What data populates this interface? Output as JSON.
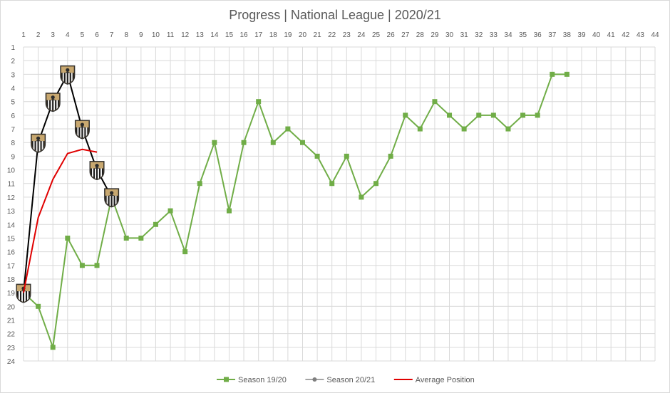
{
  "chart_data": {
    "type": "line",
    "title": "Progress | National League | 2020/21",
    "xlabel": "",
    "ylabel": "",
    "x_axis_position": "top",
    "y_axis_reversed": true,
    "xlim": [
      1,
      44
    ],
    "ylim": [
      1,
      24
    ],
    "x_ticks": [
      1,
      2,
      3,
      4,
      5,
      6,
      7,
      8,
      9,
      10,
      11,
      12,
      13,
      14,
      15,
      16,
      17,
      18,
      19,
      20,
      21,
      22,
      23,
      24,
      25,
      26,
      27,
      28,
      29,
      30,
      31,
      32,
      33,
      34,
      35,
      36,
      37,
      38,
      39,
      40,
      41,
      42,
      43,
      44
    ],
    "y_ticks": [
      1,
      2,
      3,
      4,
      5,
      6,
      7,
      8,
      9,
      10,
      11,
      12,
      13,
      14,
      15,
      16,
      17,
      18,
      19,
      20,
      21,
      22,
      23,
      24
    ],
    "grid": true,
    "legend_position": "bottom",
    "series": [
      {
        "name": "Season 19/20",
        "color": "#70ad47",
        "marker": "square",
        "x": [
          1,
          2,
          3,
          4,
          5,
          6,
          7,
          8,
          9,
          10,
          11,
          12,
          13,
          14,
          15,
          16,
          17,
          18,
          19,
          20,
          21,
          22,
          23,
          24,
          25,
          26,
          27,
          28,
          29,
          30,
          31,
          32,
          33,
          34,
          35,
          36,
          37,
          38
        ],
        "values": [
          19,
          20,
          23,
          15,
          17,
          17,
          12,
          15,
          15,
          14,
          13,
          16,
          11,
          8,
          13,
          8,
          5,
          8,
          7,
          8,
          9,
          11,
          9,
          12,
          11,
          9,
          6,
          7,
          5,
          6,
          7,
          6,
          6,
          7,
          6,
          6,
          3,
          3
        ]
      },
      {
        "name": "Season 20/21",
        "color": "#000000",
        "marker": "club-badge",
        "x": [
          1,
          2,
          3,
          4,
          5,
          6,
          7
        ],
        "values": [
          19,
          8,
          5,
          3,
          7,
          10,
          12
        ]
      },
      {
        "name": "Average Position",
        "color": "#e00000",
        "marker": "none",
        "x": [
          1,
          2,
          3,
          4,
          5,
          6
        ],
        "values": [
          19,
          13.5,
          10.7,
          8.8,
          8.5,
          8.7
        ]
      }
    ]
  }
}
